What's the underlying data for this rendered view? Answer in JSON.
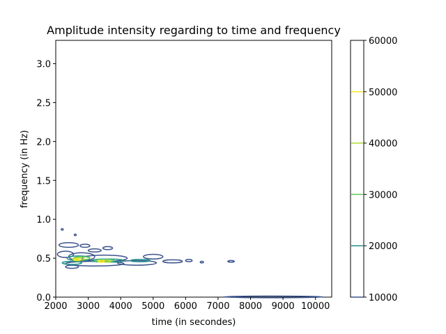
{
  "chart_data": {
    "type": "contour",
    "title": "Amplitude intensity regarding to time and frequency",
    "xlabel": "time (in secondes)",
    "ylabel": "frequency (in Hz)",
    "xlim": [
      2000,
      10500
    ],
    "ylim": [
      0,
      3.3
    ],
    "xticks": [
      {
        "value": 2000,
        "label": "2000"
      },
      {
        "value": 3000,
        "label": "3000"
      },
      {
        "value": 4000,
        "label": "4000"
      },
      {
        "value": 5000,
        "label": "5000"
      },
      {
        "value": 6000,
        "label": "6000"
      },
      {
        "value": 7000,
        "label": "7000"
      },
      {
        "value": 8000,
        "label": "8000"
      },
      {
        "value": 9000,
        "label": "9000"
      },
      {
        "value": 10000,
        "label": "10000"
      }
    ],
    "yticks": [
      {
        "value": 0.0,
        "label": "0.0"
      },
      {
        "value": 0.5,
        "label": "0.5"
      },
      {
        "value": 1.0,
        "label": "1.0"
      },
      {
        "value": 1.5,
        "label": "1.5"
      },
      {
        "value": 2.0,
        "label": "2.0"
      },
      {
        "value": 2.5,
        "label": "2.5"
      },
      {
        "value": 3.0,
        "label": "3.0"
      }
    ],
    "colorbar": {
      "range": [
        10000,
        60000
      ],
      "levels": [
        {
          "value": 10000,
          "label": "10000",
          "color": "#3b528b"
        },
        {
          "value": 20000,
          "label": "20000",
          "color": "#21918c"
        },
        {
          "value": 30000,
          "label": "30000",
          "color": "#5ec962"
        },
        {
          "value": 40000,
          "label": "40000",
          "color": "#addc30"
        },
        {
          "value": 50000,
          "label": "50000",
          "color": "#fde725"
        },
        {
          "value": 60000,
          "label": "60000",
          "color": "#fde725"
        }
      ]
    },
    "contours": [
      {
        "level": 10000,
        "color": "#3b528b",
        "blobs": [
          {
            "x": 2300,
            "y": 0.55,
            "rx": 250,
            "ry": 0.04
          },
          {
            "x": 2800,
            "y": 0.52,
            "rx": 400,
            "ry": 0.05
          },
          {
            "x": 3500,
            "y": 0.5,
            "rx": 700,
            "ry": 0.04
          },
          {
            "x": 3200,
            "y": 0.43,
            "rx": 900,
            "ry": 0.03
          },
          {
            "x": 4500,
            "y": 0.44,
            "rx": 600,
            "ry": 0.03
          },
          {
            "x": 5000,
            "y": 0.52,
            "rx": 300,
            "ry": 0.03
          },
          {
            "x": 5600,
            "y": 0.46,
            "rx": 300,
            "ry": 0.02
          },
          {
            "x": 2400,
            "y": 0.67,
            "rx": 300,
            "ry": 0.03
          },
          {
            "x": 2900,
            "y": 0.66,
            "rx": 150,
            "ry": 0.02
          },
          {
            "x": 3200,
            "y": 0.6,
            "rx": 200,
            "ry": 0.02
          },
          {
            "x": 3600,
            "y": 0.63,
            "rx": 150,
            "ry": 0.02
          },
          {
            "x": 2500,
            "y": 0.39,
            "rx": 200,
            "ry": 0.02
          },
          {
            "x": 6100,
            "y": 0.47,
            "rx": 100,
            "ry": 0.015
          },
          {
            "x": 6500,
            "y": 0.45,
            "rx": 50,
            "ry": 0.01
          },
          {
            "x": 7400,
            "y": 0.46,
            "rx": 100,
            "ry": 0.01
          },
          {
            "x": 2200,
            "y": 0.87,
            "rx": 30,
            "ry": 0.01
          },
          {
            "x": 2600,
            "y": 0.8,
            "rx": 30,
            "ry": 0.01
          },
          {
            "x": 8700,
            "y": 0.003,
            "rx": 1550,
            "ry": 0.004
          }
        ]
      },
      {
        "level": 20000,
        "color": "#21918c",
        "blobs": [
          {
            "x": 2700,
            "y": 0.5,
            "rx": 350,
            "ry": 0.03
          },
          {
            "x": 3600,
            "y": 0.47,
            "rx": 500,
            "ry": 0.02
          },
          {
            "x": 2500,
            "y": 0.44,
            "rx": 300,
            "ry": 0.02
          },
          {
            "x": 4600,
            "y": 0.47,
            "rx": 300,
            "ry": 0.015
          }
        ]
      },
      {
        "level": 30000,
        "color": "#5ec962",
        "blobs": [
          {
            "x": 2800,
            "y": 0.5,
            "rx": 250,
            "ry": 0.02
          },
          {
            "x": 3500,
            "y": 0.47,
            "rx": 300,
            "ry": 0.015
          }
        ]
      },
      {
        "level": 40000,
        "color": "#addc30",
        "blobs": [
          {
            "x": 2700,
            "y": 0.49,
            "rx": 180,
            "ry": 0.015
          },
          {
            "x": 3500,
            "y": 0.46,
            "rx": 200,
            "ry": 0.01
          }
        ]
      },
      {
        "level": 50000,
        "color": "#fde725",
        "blobs": [
          {
            "x": 2650,
            "y": 0.48,
            "rx": 100,
            "ry": 0.01
          },
          {
            "x": 3400,
            "y": 0.46,
            "rx": 100,
            "ry": 0.008
          }
        ]
      }
    ]
  }
}
